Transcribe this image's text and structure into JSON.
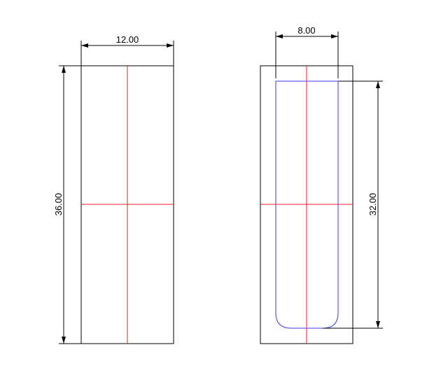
{
  "colors": {
    "outline": "#000000",
    "centerline": "#e8202a",
    "cavity": "#3b3bf0",
    "background": "#ffffff"
  },
  "views": {
    "left": {
      "width_label": "12.00",
      "height_label": "36.00"
    },
    "right": {
      "width_label": "8.00",
      "height_label": "32.00"
    }
  }
}
